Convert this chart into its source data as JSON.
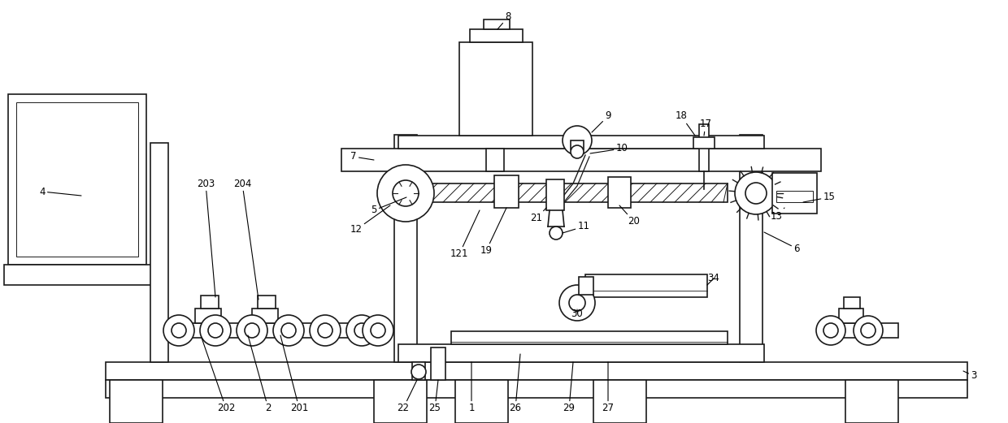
{
  "bg_color": "#ffffff",
  "line_color": "#1a1a1a",
  "lw": 1.2,
  "fig_width": 12.4,
  "fig_height": 5.21,
  "dpi": 100
}
